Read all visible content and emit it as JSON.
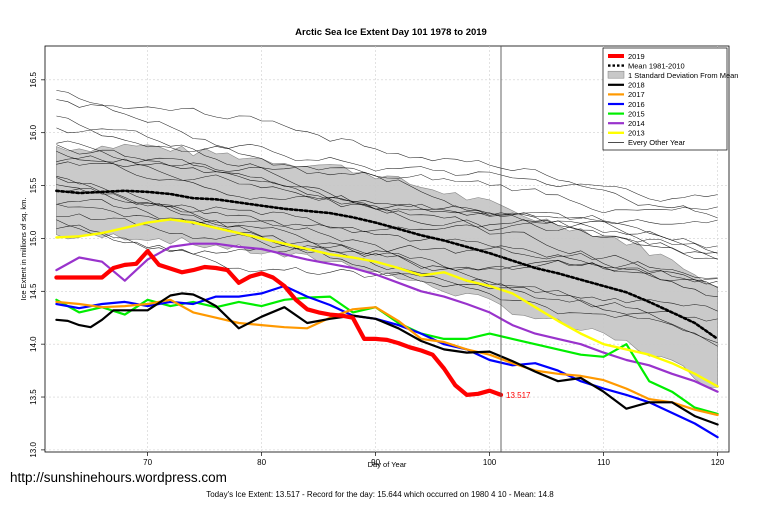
{
  "chart_data": {
    "type": "line",
    "title": "Arctic Sea Ice Extent Day 101 1978 to 2019",
    "xlabel": "Day of Year",
    "ylabel": "Ice Extent in millions of sq. km.",
    "xlim": [
      61,
      121
    ],
    "ylim": [
      12.98,
      16.82
    ],
    "x_ticks": [
      "70",
      "80",
      "90",
      "100",
      "110",
      "120"
    ],
    "y_ticks": [
      "13.0",
      "13.5",
      "14.0",
      "14.5",
      "15.0",
      "15.5",
      "16.0",
      "16.5"
    ],
    "current_day": 101,
    "grid": true,
    "legend_position": "top-right",
    "legend": [
      "2019",
      "Mean 1981-2010",
      "1 Standard Deviation From Mean",
      "2018",
      "2017",
      "2016",
      "2015",
      "2014",
      "2013",
      "Every Other Year"
    ],
    "end_label": "13.517",
    "colors": {
      "2019": "#ff0000",
      "mean": "#000000",
      "sd_band": "#c8c8c8",
      "2018": "#000000",
      "2017": "#ff9900",
      "2016": "#0000ff",
      "2015": "#00ee00",
      "2014": "#9933cc",
      "2013": "#ffff00",
      "other": "#000000"
    },
    "series": [
      {
        "name": "2019",
        "x": [
          62,
          66,
          67,
          68,
          69,
          70,
          71,
          73,
          74,
          75,
          76,
          77,
          78,
          79,
          80,
          81,
          82,
          83,
          84,
          85,
          86,
          87,
          88,
          89,
          90,
          91,
          92,
          93,
          94,
          95,
          96,
          97,
          98,
          99,
          100,
          101
        ],
        "y": [
          14.63,
          14.63,
          14.72,
          14.75,
          14.76,
          14.88,
          14.75,
          14.68,
          14.7,
          14.73,
          14.72,
          14.7,
          14.58,
          14.64,
          14.67,
          14.63,
          14.55,
          14.42,
          14.33,
          14.3,
          14.28,
          14.27,
          14.25,
          14.05,
          14.05,
          14.04,
          14.01,
          13.97,
          13.94,
          13.9,
          13.77,
          13.61,
          13.52,
          13.53,
          13.56,
          13.52
        ]
      },
      {
        "name": "Mean 1981-2010",
        "x": [
          62,
          64,
          66,
          68,
          70,
          72,
          74,
          76,
          78,
          80,
          82,
          84,
          86,
          88,
          90,
          92,
          94,
          96,
          98,
          100,
          102,
          104,
          106,
          108,
          110,
          112,
          114,
          116,
          118,
          120
        ],
        "y": [
          15.45,
          15.43,
          15.44,
          15.45,
          15.44,
          15.42,
          15.38,
          15.37,
          15.34,
          15.31,
          15.28,
          15.26,
          15.24,
          15.2,
          15.15,
          15.09,
          15.03,
          14.98,
          14.92,
          14.86,
          14.79,
          14.72,
          14.67,
          14.61,
          14.55,
          14.49,
          14.4,
          14.3,
          14.2,
          14.05
        ]
      },
      {
        "name": "2018",
        "x": [
          62,
          63,
          64,
          65,
          66,
          67,
          68,
          70,
          72,
          73,
          74,
          75,
          76,
          78,
          80,
          82,
          84,
          86,
          88,
          90,
          92,
          94,
          96,
          98,
          100,
          102,
          104,
          106,
          108,
          110,
          112,
          114,
          116,
          118,
          120
        ],
        "y": [
          14.23,
          14.22,
          14.18,
          14.16,
          14.23,
          14.32,
          14.32,
          14.32,
          14.46,
          14.48,
          14.47,
          14.42,
          14.36,
          14.15,
          14.26,
          14.35,
          14.2,
          14.24,
          14.27,
          14.24,
          14.15,
          14.03,
          13.95,
          13.92,
          13.93,
          13.84,
          13.74,
          13.65,
          13.68,
          13.55,
          13.39,
          13.45,
          13.45,
          13.32,
          13.24
        ]
      },
      {
        "name": "2017",
        "x": [
          62,
          64,
          66,
          68,
          70,
          72,
          74,
          76,
          78,
          80,
          82,
          84,
          86,
          88,
          90,
          92,
          94,
          96,
          98,
          100,
          102,
          104,
          106,
          108,
          110,
          112,
          114,
          116,
          118,
          120
        ],
        "y": [
          14.4,
          14.38,
          14.35,
          14.36,
          14.38,
          14.42,
          14.3,
          14.25,
          14.2,
          14.18,
          14.16,
          14.15,
          14.25,
          14.33,
          14.35,
          14.22,
          14.05,
          14.02,
          13.95,
          13.9,
          13.82,
          13.75,
          13.72,
          13.7,
          13.66,
          13.58,
          13.48,
          13.45,
          13.38,
          13.33
        ]
      },
      {
        "name": "2016",
        "x": [
          62,
          64,
          66,
          68,
          70,
          72,
          74,
          76,
          78,
          80,
          82,
          84,
          86,
          88,
          90,
          92,
          94,
          96,
          98,
          100,
          102,
          104,
          106,
          108,
          110,
          112,
          114,
          116,
          118,
          120
        ],
        "y": [
          14.38,
          14.34,
          14.38,
          14.4,
          14.36,
          14.4,
          14.38,
          14.45,
          14.45,
          14.48,
          14.55,
          14.45,
          14.37,
          14.27,
          14.24,
          14.18,
          14.1,
          14.0,
          13.95,
          13.85,
          13.8,
          13.82,
          13.75,
          13.65,
          13.58,
          13.52,
          13.45,
          13.35,
          13.25,
          13.12
        ]
      },
      {
        "name": "2015",
        "x": [
          62,
          64,
          66,
          68,
          70,
          72,
          74,
          76,
          78,
          80,
          82,
          84,
          86,
          88,
          90,
          92,
          94,
          96,
          98,
          100,
          102,
          104,
          106,
          108,
          110,
          112,
          114,
          116,
          118,
          120
        ],
        "y": [
          14.42,
          14.3,
          14.35,
          14.28,
          14.42,
          14.36,
          14.4,
          14.35,
          14.4,
          14.36,
          14.42,
          14.44,
          14.45,
          14.3,
          14.35,
          14.2,
          14.1,
          14.05,
          14.05,
          14.1,
          14.05,
          14.0,
          13.95,
          13.9,
          13.88,
          14.0,
          13.65,
          13.55,
          13.4,
          13.34
        ]
      },
      {
        "name": "2014",
        "x": [
          62,
          64,
          66,
          68,
          70,
          72,
          74,
          76,
          78,
          80,
          82,
          84,
          86,
          88,
          90,
          92,
          94,
          96,
          98,
          100,
          102,
          104,
          106,
          108,
          110,
          112,
          114,
          116,
          118,
          120
        ],
        "y": [
          14.7,
          14.82,
          14.78,
          14.6,
          14.8,
          14.92,
          14.95,
          14.95,
          14.92,
          14.9,
          14.85,
          14.8,
          14.76,
          14.72,
          14.66,
          14.58,
          14.5,
          14.45,
          14.38,
          14.3,
          14.18,
          14.1,
          14.05,
          14.0,
          13.92,
          13.85,
          13.8,
          13.72,
          13.65,
          13.55
        ]
      },
      {
        "name": "2013",
        "x": [
          62,
          64,
          66,
          68,
          70,
          72,
          74,
          76,
          78,
          80,
          82,
          84,
          86,
          88,
          90,
          92,
          94,
          96,
          98,
          100,
          102,
          104,
          106,
          108,
          110,
          112,
          114,
          116,
          118,
          120
        ],
        "y": [
          15.01,
          15.02,
          15.05,
          15.1,
          15.15,
          15.18,
          15.15,
          15.1,
          15.05,
          15.0,
          14.95,
          14.9,
          14.85,
          14.82,
          14.78,
          14.72,
          14.65,
          14.68,
          14.6,
          14.55,
          14.48,
          14.35,
          14.22,
          14.1,
          14.0,
          13.95,
          13.9,
          13.82,
          13.72,
          13.6
        ]
      }
    ]
  },
  "watermark": "http://sunshinehours.wordpress.com",
  "footer": "Today's Ice Extent: 13.517  - Record for the day: 15.644 which occurred on 1980 4 10  - Mean: 14.8"
}
